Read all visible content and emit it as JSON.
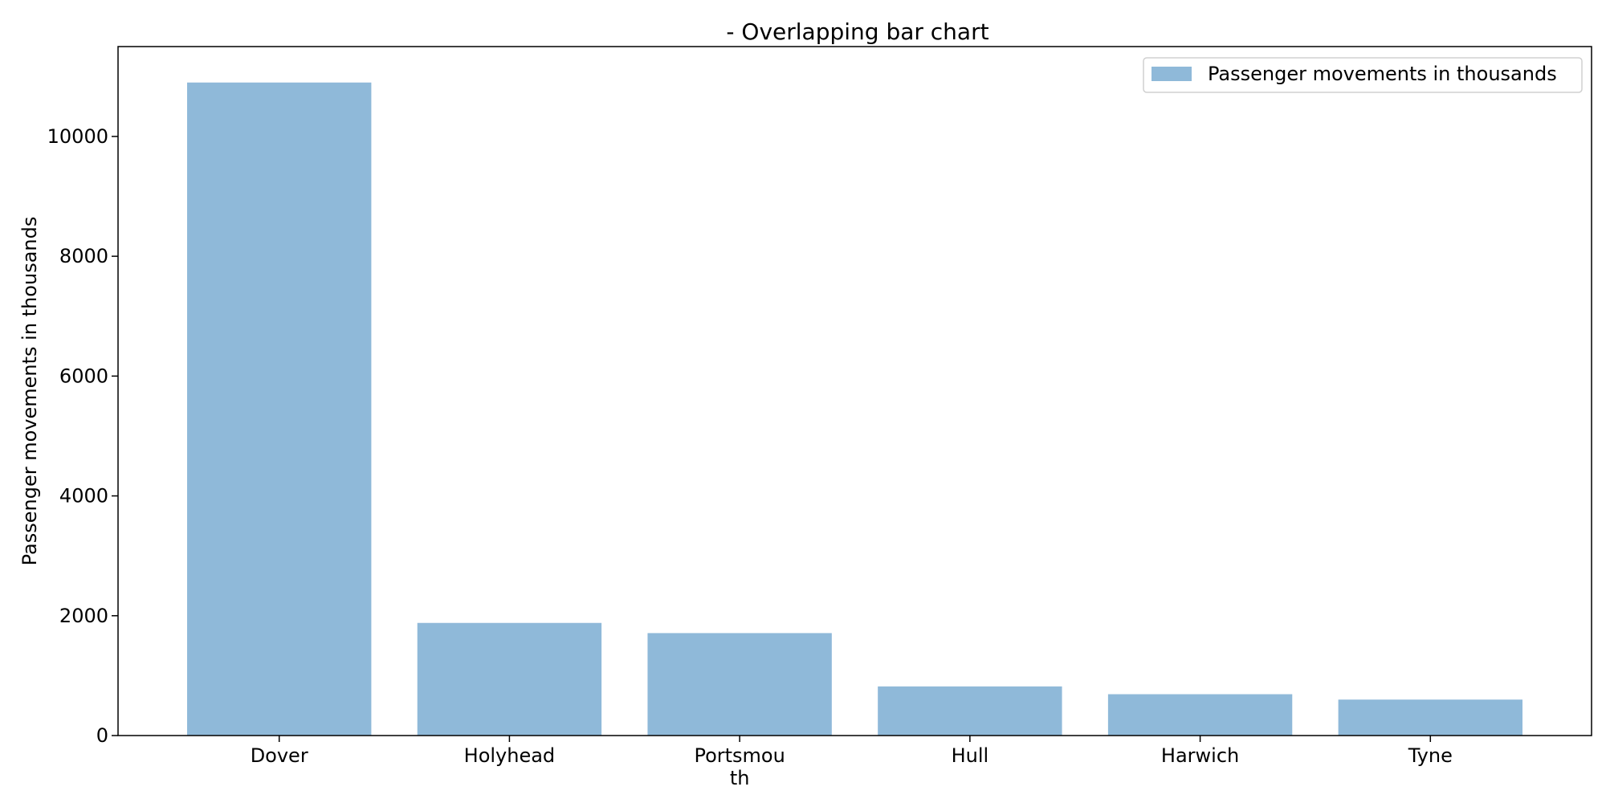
{
  "chart_data": {
    "type": "bar",
    "title": "- Overlapping bar chart",
    "xlabel": "",
    "ylabel": "Passenger movements in thousands",
    "categories": [
      "Dover",
      "Holyhead",
      "Portsmouth",
      "Hull",
      "Harwich",
      "Tyne"
    ],
    "category_display": [
      [
        "Dover"
      ],
      [
        "Holyhead"
      ],
      [
        "Portsmou",
        "th"
      ],
      [
        "Hull"
      ],
      [
        "Harwich"
      ],
      [
        "Tyne"
      ]
    ],
    "series": [
      {
        "name": "Passenger movements in thousands",
        "values": [
          10900,
          1880,
          1710,
          820,
          690,
          600
        ],
        "color": "#8fb9d9"
      }
    ],
    "yticks": [
      0,
      2000,
      4000,
      6000,
      8000,
      10000
    ],
    "ylim": [
      0,
      11500
    ],
    "grid": false,
    "legend_position": "upper-right",
    "overlapping": true
  }
}
